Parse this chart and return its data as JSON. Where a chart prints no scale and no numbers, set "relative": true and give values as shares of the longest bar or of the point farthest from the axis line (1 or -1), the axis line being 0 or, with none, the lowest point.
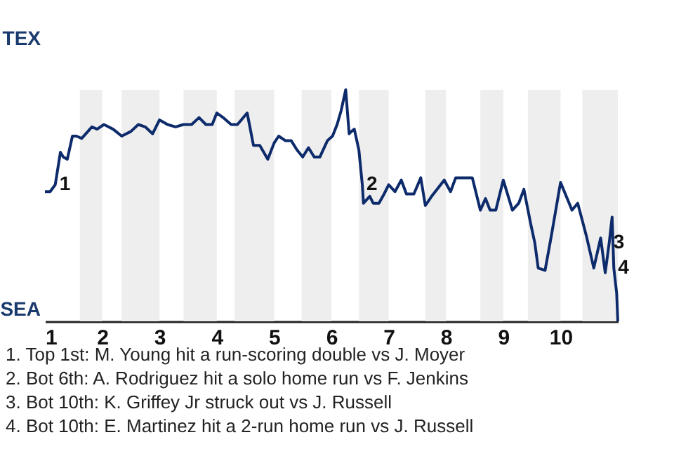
{
  "chart_data": {
    "type": "line",
    "relative": true,
    "x": [
      1.0,
      1.09,
      1.18,
      1.27,
      1.32,
      1.39,
      1.48,
      1.55,
      1.64,
      1.75,
      1.82,
      1.91,
      2.03,
      2.19,
      2.34,
      2.5,
      2.63,
      2.75,
      2.88,
      3.0,
      3.14,
      3.28,
      3.42,
      3.56,
      3.69,
      3.81,
      3.92,
      4.0,
      4.11,
      4.25,
      4.36,
      4.53,
      4.64,
      4.75,
      4.89,
      5.0,
      5.08,
      5.2,
      5.3,
      5.4,
      5.5,
      5.6,
      5.7,
      5.8,
      5.93,
      6.02,
      6.1,
      6.17,
      6.25,
      6.31,
      6.35,
      6.4,
      6.48,
      6.54,
      6.56,
      6.67,
      6.73,
      6.83,
      6.92,
      7.0,
      7.11,
      7.22,
      7.31,
      7.44,
      7.56,
      7.64,
      7.75,
      7.97,
      8.08,
      8.17,
      8.27,
      8.37,
      8.46,
      8.6,
      8.69,
      8.77,
      8.87,
      9.0,
      9.16,
      9.27,
      9.36,
      9.48,
      9.55,
      9.61,
      9.73,
      9.84,
      10.0,
      10.2,
      10.3,
      10.45,
      10.58,
      10.7,
      10.78,
      10.85,
      10.9,
      10.93,
      10.98,
      11.0
    ],
    "series": [
      {
        "color": "#0d2b6b",
        "values": [
          0.56,
          0.56,
          0.59,
          0.73,
          0.71,
          0.7,
          0.8,
          0.8,
          0.79,
          0.82,
          0.84,
          0.83,
          0.85,
          0.83,
          0.8,
          0.82,
          0.85,
          0.84,
          0.81,
          0.87,
          0.85,
          0.84,
          0.85,
          0.85,
          0.88,
          0.85,
          0.85,
          0.9,
          0.88,
          0.85,
          0.85,
          0.9,
          0.76,
          0.76,
          0.7,
          0.77,
          0.8,
          0.78,
          0.78,
          0.74,
          0.71,
          0.75,
          0.71,
          0.71,
          0.78,
          0.8,
          0.85,
          0.91,
          1,
          0.81,
          0.82,
          0.83,
          0.74,
          0.59,
          0.51,
          0.54,
          0.51,
          0.51,
          0.55,
          0.59,
          0.56,
          0.61,
          0.55,
          0.55,
          0.62,
          0.5,
          0.54,
          0.61,
          0.56,
          0.62,
          0.62,
          0.62,
          0.62,
          0.48,
          0.53,
          0.48,
          0.48,
          0.61,
          0.48,
          0.51,
          0.57,
          0.42,
          0.34,
          0.23,
          0.22,
          0.37,
          0.6,
          0.48,
          0.51,
          0.37,
          0.23,
          0.36,
          0.21,
          0.34,
          0.45,
          0.23,
          0.12,
          0
        ]
      }
    ],
    "xlim": [
      1,
      11
    ],
    "xticks": [
      1,
      2,
      3,
      4,
      5,
      6,
      7,
      8,
      9,
      10
    ],
    "bands": [
      {
        "axis": "x",
        "from": 1.61,
        "to": 2,
        "color": "#eeeeee"
      },
      {
        "axis": "x",
        "from": 2.34,
        "to": 3,
        "color": "#eeeeee"
      },
      {
        "axis": "x",
        "from": 3.42,
        "to": 4,
        "color": "#eeeeee"
      },
      {
        "axis": "x",
        "from": 4.31,
        "to": 5,
        "color": "#eeeeee"
      },
      {
        "axis": "x",
        "from": 5.48,
        "to": 6,
        "color": "#eeeeee"
      },
      {
        "axis": "x",
        "from": 6.48,
        "to": 7,
        "color": "#eeeeee"
      },
      {
        "axis": "x",
        "from": 7.64,
        "to": 8,
        "color": "#eeeeee"
      },
      {
        "axis": "x",
        "from": 8.6,
        "to": 9,
        "color": "#eeeeee"
      },
      {
        "axis": "x",
        "from": 9.43,
        "to": 10,
        "color": "#eeeeee"
      },
      {
        "axis": "x",
        "from": 10.38,
        "to": 11,
        "color": "#eeeeee"
      }
    ],
    "annotations": [
      {
        "text": "1",
        "x": 1.18,
        "y": 0.59
      },
      {
        "text": "2",
        "x": 6.54,
        "y": 0.59
      },
      {
        "text": "3",
        "x": 10.85,
        "y": 0.34
      },
      {
        "text": "4",
        "x": 10.93,
        "y": 0.23
      },
      "TEX",
      "SEA",
      "1. Top 1st: M. Young hit a run-scoring double vs J. Moyer",
      "2. Bot 6th: A. Rodriguez hit a solo home run vs F. Jenkins",
      "3. Bot 10th: K. Griffey Jr struck out vs J. Russell",
      "4. Bot 10th: E. Martinez hit a 2-run home run vs J. Russell"
    ]
  }
}
